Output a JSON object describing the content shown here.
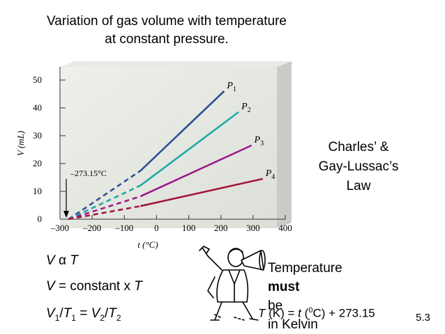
{
  "title": {
    "line1": "Variation of gas volume with temperature",
    "line2": "at constant pressure."
  },
  "chart_data": {
    "type": "line",
    "xlabel": "t (°C)",
    "ylabel": "V (mL)",
    "xlim": [
      -300,
      400
    ],
    "ylim": [
      0,
      50
    ],
    "xticks": [
      -300,
      -200,
      -100,
      0,
      100,
      200,
      300,
      400
    ],
    "yticks": [
      0,
      10,
      20,
      30,
      40,
      50
    ],
    "xtick_labels": [
      "–300",
      "–200",
      "–100",
      "0",
      "100",
      "200",
      "300",
      "400"
    ],
    "ytick_labels": [
      "0",
      "10",
      "20",
      "30",
      "40",
      "50"
    ],
    "grid": false,
    "annotation": "–273.15°C",
    "extrapolation": "dashed from –273.15 °C to about –50 °C, solid above",
    "series": [
      {
        "name": "P1",
        "label_main": "P",
        "label_sub": "1",
        "color": "#2e4f96",
        "x": [
          -273.15,
          -50,
          210
        ],
        "y": [
          0,
          17.4,
          46
        ]
      },
      {
        "name": "P2",
        "label_main": "P",
        "label_sub": "2",
        "color": "#1fa9a6",
        "x": [
          -273.15,
          -50,
          255
        ],
        "y": [
          0,
          12.1,
          38.5
        ]
      },
      {
        "name": "P3",
        "label_main": "P",
        "label_sub": "3",
        "color": "#9c1a8a",
        "x": [
          -273.15,
          -50,
          295
        ],
        "y": [
          0,
          8.2,
          26.5
        ]
      },
      {
        "name": "P4",
        "label_main": "P",
        "label_sub": "4",
        "color": "#a3163c",
        "x": [
          -273.15,
          -50,
          330
        ],
        "y": [
          0,
          4.7,
          14.5
        ]
      }
    ]
  },
  "law": {
    "line1": "Charles’ &",
    "line2": "Gay-Lussac’s",
    "line3": "Law"
  },
  "equations": {
    "e1_v": "V",
    "e1_alpha": "α",
    "e1_t": "T",
    "e2_v": "V",
    "e2_mid": "= constant x",
    "e2_t": "T",
    "e3_v1": "V",
    "e3_s1": "1",
    "e3_slash1": "/",
    "e3_t1": "T",
    "e3_s2": "1",
    "e3_eq": "=",
    "e3_v2": "V",
    "e3_s3": "2",
    "e3_slash2": "/",
    "e3_t2": "T",
    "e3_s4": "2"
  },
  "note": {
    "text1": "Temperature",
    "bold": "must",
    "text2": "be",
    "line2": "in Kelvin"
  },
  "conversion": {
    "tk": "T",
    "k_unit": "(K) =",
    "t": "t",
    "paren_open": "(",
    "zero": "0",
    "c_unit": "C) + 273.15"
  },
  "slide_number": "5.3"
}
